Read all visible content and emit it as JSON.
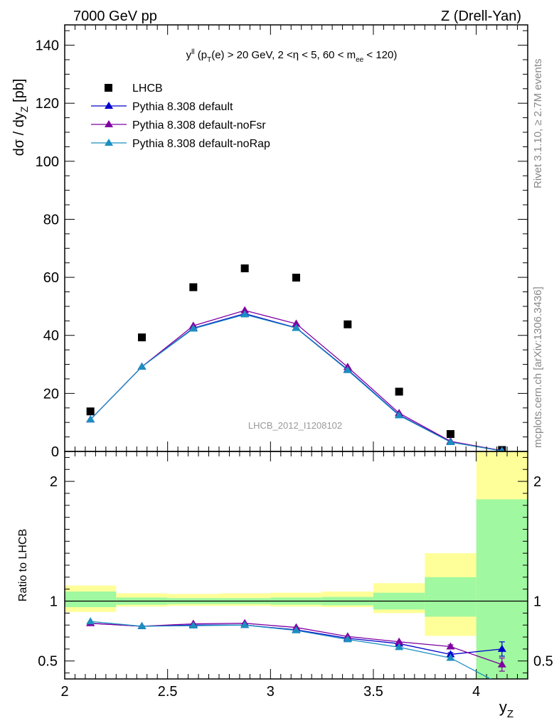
{
  "header": {
    "left": "7000 GeV pp",
    "right": "Z (Drell-Yan)"
  },
  "side_labels": {
    "rivet": "Rivet 3.1.10, ≥ 2.7M events",
    "mcplots": "mcplots.cern.ch [arXiv:1306.3436]"
  },
  "colors": {
    "data": "#000000",
    "pythia_default": "#0000cc",
    "pythia_nofsr": "#7f00a0",
    "pythia_norap": "#1b8fbf",
    "band_inner": "#a0f8a0",
    "band_outer": "#ffff99"
  },
  "chart_data": [
    {
      "type": "scatter",
      "title": "y^{ll} (p_T(e) > 20 GeV, 2 <η < 5, 60 < m_ee < 120)",
      "title_parts": {
        "y": "y",
        "ll": "ll",
        "pt_open": " (p",
        "T": "T",
        "mid": "(e) > 20 GeV, 2 <η < 5, 60 < m",
        "ee": "ee",
        "close": " < 120)"
      },
      "analysis_label": "LHCB_2012_I1208102",
      "ylabel": "dσ / dy",
      "ylabel_sub": "Z",
      "ylabel_unit": " [pb]",
      "xlabel": "y",
      "xlabel_sub": "Z",
      "xlim": [
        2.0,
        4.25
      ],
      "ylim": [
        0,
        147
      ],
      "y_ticks": [
        0,
        20,
        40,
        60,
        80,
        100,
        120,
        140
      ],
      "legend_position": "top-left",
      "x": [
        2.125,
        2.375,
        2.625,
        2.875,
        3.125,
        3.375,
        3.625,
        3.875,
        4.125
      ],
      "series": [
        {
          "name": "LHCB",
          "marker": "square",
          "values": [
            13.8,
            39.3,
            56.6,
            63.1,
            59.9,
            43.8,
            20.6,
            6.0,
            0.5
          ]
        },
        {
          "name": "Pythia 8.308 default",
          "marker": "triangle",
          "values": [
            11.0,
            29.2,
            42.5,
            47.5,
            42.6,
            28.2,
            12.6,
            3.3,
            0.3
          ]
        },
        {
          "name": "Pythia 8.308 default-noFsr",
          "marker": "triangle",
          "values": [
            11.0,
            29.2,
            43.3,
            48.6,
            44.0,
            29.1,
            13.2,
            3.5,
            0.25
          ]
        },
        {
          "name": "Pythia 8.308 default-noRap",
          "marker": "triangle",
          "values": [
            11.0,
            29.2,
            42.3,
            47.2,
            42.5,
            28.0,
            12.4,
            3.2,
            0.15
          ]
        }
      ]
    },
    {
      "type": "line",
      "ylabel": "Ratio to LHCB",
      "xlim": [
        2.0,
        4.25
      ],
      "ylim": [
        0.35,
        2.25
      ],
      "y_ticks": [
        0.5,
        1,
        2
      ],
      "x_ticks": [
        2,
        2.5,
        3,
        3.5,
        4
      ],
      "x_tick_labels": [
        "2",
        "2.5",
        "3",
        "3.5",
        "4"
      ],
      "bins": [
        [
          2.0,
          2.25
        ],
        [
          2.25,
          2.5
        ],
        [
          2.5,
          2.75
        ],
        [
          2.75,
          3.0
        ],
        [
          3.0,
          3.25
        ],
        [
          3.25,
          3.5
        ],
        [
          3.5,
          3.75
        ],
        [
          3.75,
          4.0
        ],
        [
          4.0,
          4.25
        ]
      ],
      "band_inner": [
        [
          0.95,
          1.08
        ],
        [
          0.97,
          1.03
        ],
        [
          0.975,
          1.025
        ],
        [
          0.975,
          1.025
        ],
        [
          0.97,
          1.03
        ],
        [
          0.965,
          1.035
        ],
        [
          0.93,
          1.07
        ],
        [
          0.87,
          1.2
        ],
        [
          0.35,
          1.85
        ]
      ],
      "band_outer": [
        [
          0.91,
          1.13
        ],
        [
          0.955,
          1.065
        ],
        [
          0.96,
          1.06
        ],
        [
          0.96,
          1.065
        ],
        [
          0.955,
          1.07
        ],
        [
          0.95,
          1.08
        ],
        [
          0.9,
          1.15
        ],
        [
          0.71,
          1.4
        ],
        [
          0.35,
          2.25
        ]
      ],
      "x": [
        2.125,
        2.375,
        2.625,
        2.875,
        3.125,
        3.375,
        3.625,
        3.875,
        4.125
      ],
      "series": [
        {
          "name": "Pythia 8.308 default",
          "values": [
            0.815,
            0.79,
            0.8,
            0.8,
            0.76,
            0.69,
            0.645,
            0.555,
            0.6
          ],
          "err": [
            0,
            0,
            0,
            0,
            0,
            0,
            0,
            0.015,
            0.06
          ]
        },
        {
          "name": "Pythia 8.308 default-noFsr",
          "values": [
            0.815,
            0.79,
            0.81,
            0.815,
            0.78,
            0.705,
            0.66,
            0.62,
            0.47
          ],
          "err": [
            0,
            0,
            0,
            0,
            0,
            0,
            0,
            0.015,
            0.055
          ]
        },
        {
          "name": "Pythia 8.308 default-noRap",
          "values": [
            0.83,
            0.79,
            0.795,
            0.8,
            0.755,
            0.68,
            0.615,
            0.525,
            0.3
          ],
          "err": [
            0,
            0,
            0,
            0,
            0,
            0,
            0,
            0,
            0
          ]
        }
      ]
    }
  ]
}
